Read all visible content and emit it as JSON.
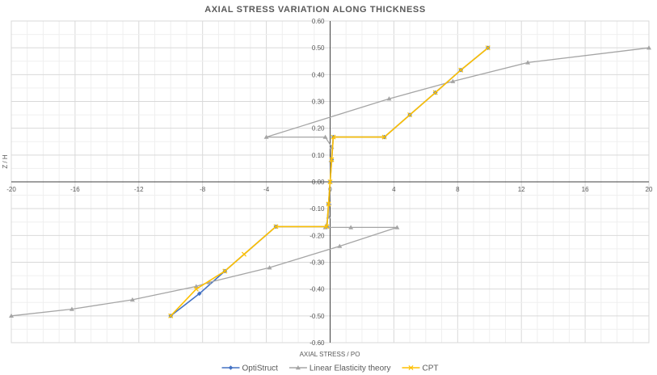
{
  "chart_data": {
    "type": "line",
    "title": "AXIAL STRESS VARIATION ALONG THICKNESS",
    "xlabel": "AXIAL STRESS / PO",
    "ylabel": "Z / H",
    "xlim": [
      -20,
      20
    ],
    "ylim": [
      -0.6,
      0.6
    ],
    "x_ticks": [
      "-20",
      "-16",
      "-12",
      "-8",
      "-4",
      "0",
      "4",
      "8",
      "12",
      "16",
      "20"
    ],
    "y_ticks": [
      "0.60",
      "0.50",
      "0.40",
      "0.30",
      "0.20",
      "0.10",
      "0.00",
      "-0.10",
      "-0.20",
      "-0.30",
      "-0.40",
      "-0.50",
      "-0.60"
    ],
    "grid": true,
    "legend_position": "bottom",
    "series": [
      {
        "name": "OptiStruct",
        "color": "#4472C4",
        "marker": "diamond",
        "points": [
          [
            -10,
            -0.5
          ],
          [
            -8.2,
            -0.417
          ],
          [
            -6.6,
            -0.333
          ],
          [
            -3.4,
            -0.167
          ],
          [
            -0.2,
            -0.167
          ],
          [
            -0.1,
            -0.083
          ],
          [
            0,
            0
          ],
          [
            0.1,
            0.083
          ],
          [
            0.2,
            0.167
          ],
          [
            3.4,
            0.167
          ],
          [
            5,
            0.25
          ],
          [
            6.6,
            0.333
          ],
          [
            8.2,
            0.417
          ],
          [
            9.9,
            0.5
          ]
        ]
      },
      {
        "name": "Linear Elasticity theory",
        "color": "#A5A5A5",
        "marker": "triangle",
        "points": [
          [
            -20,
            -0.5
          ],
          [
            -16.2,
            -0.475
          ],
          [
            -12.4,
            -0.44
          ],
          [
            -8.4,
            -0.39
          ],
          [
            -7.6,
            -0.375
          ],
          [
            -3.8,
            -0.32
          ],
          [
            0.6,
            -0.24
          ],
          [
            4.2,
            -0.17
          ],
          [
            1.3,
            -0.17
          ],
          [
            -0.3,
            -0.17
          ],
          [
            -0.1,
            -0.13
          ],
          [
            -0.05,
            -0.08
          ],
          [
            0,
            0
          ],
          [
            0.05,
            0.08
          ],
          [
            0.1,
            0.13
          ],
          [
            -0.3,
            0.167
          ],
          [
            -4,
            0.167
          ],
          [
            3.7,
            0.31
          ],
          [
            7.7,
            0.375
          ],
          [
            12.4,
            0.445
          ],
          [
            20,
            0.5
          ]
        ]
      },
      {
        "name": "CPT",
        "color": "#FFC000",
        "marker": "x",
        "points": [
          [
            -10,
            -0.5
          ],
          [
            -8.4,
            -0.4
          ],
          [
            -6.6,
            -0.333
          ],
          [
            -5.4,
            -0.27
          ],
          [
            -3.4,
            -0.167
          ],
          [
            -0.2,
            -0.167
          ],
          [
            -0.1,
            -0.083
          ],
          [
            0,
            0
          ],
          [
            0.1,
            0.083
          ],
          [
            0.2,
            0.167
          ],
          [
            3.4,
            0.167
          ],
          [
            5,
            0.25
          ],
          [
            6.6,
            0.333
          ],
          [
            8.2,
            0.417
          ],
          [
            9.9,
            0.5
          ]
        ]
      }
    ]
  }
}
